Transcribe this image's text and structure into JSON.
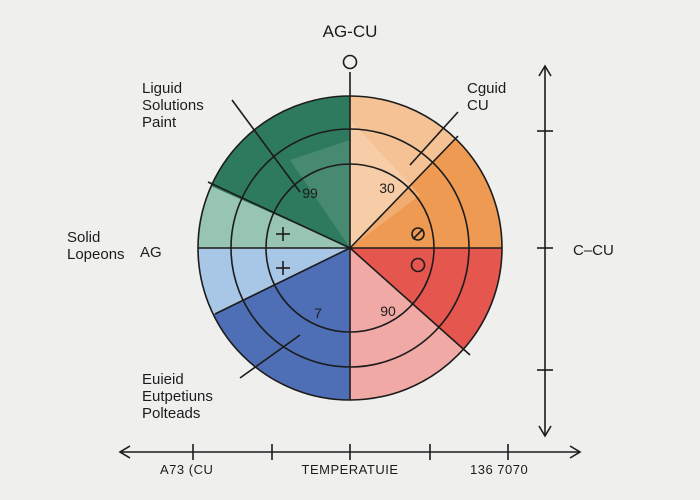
{
  "title": "AG-CU",
  "labels": {
    "top_left": [
      "Liguid",
      "Solutions",
      "Paint"
    ],
    "top_right": [
      "Cguid",
      "CU"
    ],
    "left": [
      "Solid",
      "Lopeons"
    ],
    "left_marker": "AG",
    "right_marker": "C–CU",
    "bottom_left": [
      "Euieid",
      "Eutpetiuns",
      "Polteads"
    ],
    "axis_left": "A73 (CU",
    "axis_center": "TEMPERATUIE",
    "axis_right": "136 7070"
  },
  "inner_labels": {
    "upper_left": "99",
    "upper_right": "30",
    "lower_right": "90",
    "lower_left": "7"
  },
  "colors": {
    "background": "#efefed",
    "sectors": [
      "#f4c294",
      "#ee9a52",
      "#e4564e",
      "#f1a9a6",
      "#4e6fb5",
      "#a8c6e6",
      "#98c4b2",
      "#2e7a5e"
    ]
  },
  "icons": [
    "top-circle-icon",
    "plus-icon",
    "plus-icon",
    "slashed-circle-icon",
    "circle-icon"
  ]
}
